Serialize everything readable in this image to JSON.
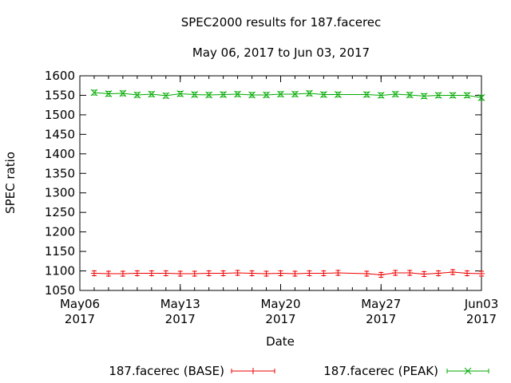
{
  "chart_data": {
    "type": "line",
    "title": "SPEC2000 results for 187.facerec",
    "subtitle": "May 06, 2017 to Jun 03, 2017",
    "xlabel": "Date",
    "ylabel": "SPEC ratio",
    "x_range": [
      "2017-05-06",
      "2017-06-03"
    ],
    "ylim": [
      1050,
      1600
    ],
    "y_ticks": [
      1050,
      1100,
      1150,
      1200,
      1250,
      1300,
      1350,
      1400,
      1450,
      1500,
      1550,
      1600
    ],
    "x_ticks": [
      {
        "date": "2017-05-06",
        "line1": "May06",
        "line2": "2017"
      },
      {
        "date": "2017-05-13",
        "line1": "May13",
        "line2": "2017"
      },
      {
        "date": "2017-05-20",
        "line1": "May20",
        "line2": "2017"
      },
      {
        "date": "2017-05-27",
        "line1": "May27",
        "line2": "2017"
      },
      {
        "date": "2017-06-03",
        "line1": "Jun03",
        "line2": "2017"
      }
    ],
    "grid": false,
    "legend_position": "bottom",
    "series": [
      {
        "name": "187.facerec (BASE)",
        "color": "#ee0000",
        "marker": "plus",
        "points": [
          {
            "x": "2017-05-07",
            "y": 1094
          },
          {
            "x": "2017-05-08",
            "y": 1093
          },
          {
            "x": "2017-05-09",
            "y": 1093
          },
          {
            "x": "2017-05-10",
            "y": 1094
          },
          {
            "x": "2017-05-11",
            "y": 1094
          },
          {
            "x": "2017-05-12",
            "y": 1094
          },
          {
            "x": "2017-05-13",
            "y": 1093
          },
          {
            "x": "2017-05-14",
            "y": 1093
          },
          {
            "x": "2017-05-15",
            "y": 1094
          },
          {
            "x": "2017-05-16",
            "y": 1094
          },
          {
            "x": "2017-05-17",
            "y": 1095
          },
          {
            "x": "2017-05-18",
            "y": 1094
          },
          {
            "x": "2017-05-19",
            "y": 1093
          },
          {
            "x": "2017-05-20",
            "y": 1094
          },
          {
            "x": "2017-05-21",
            "y": 1093
          },
          {
            "x": "2017-05-22",
            "y": 1094
          },
          {
            "x": "2017-05-23",
            "y": 1094
          },
          {
            "x": "2017-05-24",
            "y": 1095
          },
          {
            "x": "2017-05-26",
            "y": 1093
          },
          {
            "x": "2017-05-27",
            "y": 1090
          },
          {
            "x": "2017-05-28",
            "y": 1095
          },
          {
            "x": "2017-05-29",
            "y": 1095
          },
          {
            "x": "2017-05-30",
            "y": 1092
          },
          {
            "x": "2017-05-31",
            "y": 1094
          },
          {
            "x": "2017-06-01",
            "y": 1097
          },
          {
            "x": "2017-06-02",
            "y": 1094
          },
          {
            "x": "2017-06-03",
            "y": 1093
          }
        ]
      },
      {
        "name": "187.facerec (PEAK)",
        "color": "#00aa00",
        "marker": "cross",
        "points": [
          {
            "x": "2017-05-07",
            "y": 1557
          },
          {
            "x": "2017-05-08",
            "y": 1554
          },
          {
            "x": "2017-05-09",
            "y": 1555
          },
          {
            "x": "2017-05-10",
            "y": 1551
          },
          {
            "x": "2017-05-11",
            "y": 1553
          },
          {
            "x": "2017-05-12",
            "y": 1549
          },
          {
            "x": "2017-05-13",
            "y": 1554
          },
          {
            "x": "2017-05-14",
            "y": 1552
          },
          {
            "x": "2017-05-15",
            "y": 1551
          },
          {
            "x": "2017-05-16",
            "y": 1552
          },
          {
            "x": "2017-05-17",
            "y": 1553
          },
          {
            "x": "2017-05-18",
            "y": 1551
          },
          {
            "x": "2017-05-19",
            "y": 1551
          },
          {
            "x": "2017-05-20",
            "y": 1553
          },
          {
            "x": "2017-05-21",
            "y": 1553
          },
          {
            "x": "2017-05-22",
            "y": 1555
          },
          {
            "x": "2017-05-23",
            "y": 1552
          },
          {
            "x": "2017-05-24",
            "y": 1552
          },
          {
            "x": "2017-05-26",
            "y": 1552
          },
          {
            "x": "2017-05-27",
            "y": 1550
          },
          {
            "x": "2017-05-28",
            "y": 1553
          },
          {
            "x": "2017-05-29",
            "y": 1551
          },
          {
            "x": "2017-05-30",
            "y": 1548
          },
          {
            "x": "2017-05-31",
            "y": 1550
          },
          {
            "x": "2017-06-01",
            "y": 1550
          },
          {
            "x": "2017-06-02",
            "y": 1550
          },
          {
            "x": "2017-06-03",
            "y": 1544
          }
        ]
      }
    ]
  }
}
